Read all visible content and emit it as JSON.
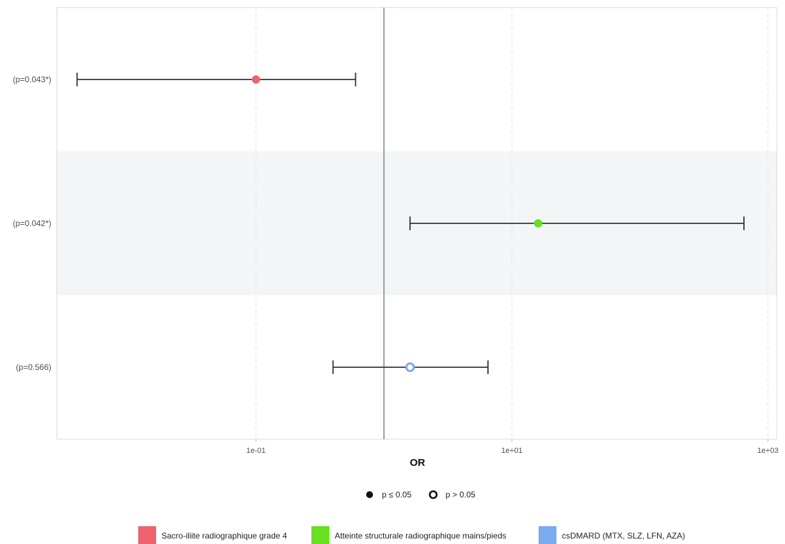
{
  "chart_data": {
    "type": "forest",
    "xlabel": "OR",
    "x_scale": "log10",
    "xlim": [
      0.0035,
      1200
    ],
    "reference_line": 1,
    "x_ticks": [
      {
        "value": 0.1,
        "label": "1e-01"
      },
      {
        "value": 10,
        "label": "1e+01"
      },
      {
        "value": 1000,
        "label": "1e+03"
      }
    ],
    "rows": [
      {
        "name": "Sacro-iliite radiographique grade 4",
        "p_label": "(p=0.043*)",
        "or": 0.1,
        "ci_low": 0.004,
        "ci_high": 0.6,
        "significant": true,
        "color": "#f0626e",
        "shaded": false
      },
      {
        "name": "Atteinte structurale radiographique mains/pieds",
        "p_label": "(p=0.042*)",
        "or": 16,
        "ci_low": 1.6,
        "ci_high": 650,
        "significant": true,
        "color": "#66e01f",
        "shaded": true
      },
      {
        "name": "csDMARD (MTX, SLZ, LFN, AZA)",
        "p_label": "(p=0.566)",
        "or": 1.6,
        "ci_low": 0.4,
        "ci_high": 6.5,
        "significant": false,
        "color": "#7aaaf0",
        "shaded": false
      }
    ],
    "shape_legend": [
      {
        "label": "p ≤ 0.05",
        "filled": true
      },
      {
        "label": "p > 0.05",
        "filled": false
      }
    ],
    "grid": "vertical dashed major lines",
    "legend_position": "bottom"
  }
}
